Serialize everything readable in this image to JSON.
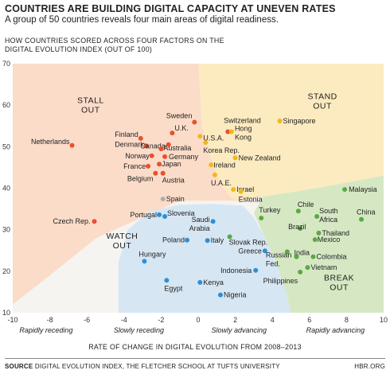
{
  "header": {
    "title": "COUNTRIES ARE BUILDING DIGITAL CAPACITY AT UNEVEN RATES",
    "subtitle": "A group of 50 countries reveals four main areas of digital readiness.",
    "caption_line1": "HOW COUNTRIES SCORED ACROSS FOUR FACTORS ON THE",
    "caption_line2": "DIGITAL EVOLUTION INDEX (OUT OF 100)"
  },
  "footer": {
    "source_label": "SOURCE",
    "source_text": "DIGITAL EVOLUTION INDEX, THE FLETCHER SCHOOL AT TUFTS UNIVERSITY",
    "credit": "HBR.ORG"
  },
  "colors": {
    "stall_out": "#e8502e",
    "stand_out": "#f2b818",
    "break_out": "#5aa942",
    "watch_out": "#2e8fd6",
    "neutral": "#b0aca8"
  },
  "chart_data": {
    "type": "scatter",
    "xlabel": "RATE OF CHANGE IN DIGITAL EVOLUTION FROM 2008–2013",
    "ylabel": "",
    "xlim": [
      -10,
      10
    ],
    "ylim": [
      10,
      70
    ],
    "x_ticks": [
      "-10",
      "-8",
      "-6",
      "-4",
      "-2",
      "0",
      "2",
      "4",
      "6",
      "8",
      "10"
    ],
    "y_ticks": [
      "10",
      "20",
      "30",
      "40",
      "50",
      "60",
      "70"
    ],
    "grid": false,
    "regions": [
      {
        "name": "STALL",
        "name2": "OUT",
        "color": "#e8502e"
      },
      {
        "name": "STAND",
        "name2": "OUT",
        "color": "#f2b818"
      },
      {
        "name": "WATCH",
        "name2": "OUT",
        "color": "#2e8fd6"
      },
      {
        "name": "BREAK",
        "name2": "OUT",
        "color": "#5aa942"
      }
    ],
    "speed_labels": [
      "Rapidly receding",
      "Slowly receding",
      "Slowly advancing",
      "Rapidly advancing"
    ],
    "points": [
      {
        "name": "Netherlands",
        "x": -6.8,
        "y": 50.3,
        "group": "stall_out"
      },
      {
        "name": "Finland",
        "x": -3.1,
        "y": 52.0,
        "group": "stall_out"
      },
      {
        "name": "Denmark",
        "x": -2.8,
        "y": 50.2,
        "group": "stall_out"
      },
      {
        "name": "Norway",
        "x": -2.5,
        "y": 47.8,
        "group": "stall_out"
      },
      {
        "name": "France",
        "x": -2.7,
        "y": 45.3,
        "group": "stall_out"
      },
      {
        "name": "Belgium",
        "x": -2.3,
        "y": 43.6,
        "group": "stall_out"
      },
      {
        "name": "Czech Rep.",
        "x": -5.6,
        "y": 32.0,
        "group": "stall_out"
      },
      {
        "name": "Sweden",
        "x": -0.2,
        "y": 55.9,
        "group": "stall_out"
      },
      {
        "name": "U.K.",
        "x": -1.4,
        "y": 53.3,
        "group": "stall_out"
      },
      {
        "name": "Canada",
        "x": -1.6,
        "y": 50.5,
        "group": "stall_out"
      },
      {
        "name": "Australia",
        "x": -2.0,
        "y": 49.5,
        "group": "stall_out"
      },
      {
        "name": "Germany",
        "x": -1.8,
        "y": 47.6,
        "group": "stall_out"
      },
      {
        "name": "Japan",
        "x": -2.1,
        "y": 45.8,
        "group": "stall_out"
      },
      {
        "name": "Austria",
        "x": -1.9,
        "y": 43.6,
        "group": "stall_out"
      },
      {
        "name": "Switzerland",
        "x": 1.6,
        "y": 53.6,
        "group": "stall_out"
      },
      {
        "name": "U.S.A.",
        "x": 0.1,
        "y": 52.5,
        "group": "stand_out"
      },
      {
        "name": "Hong Kong",
        "x": 1.8,
        "y": 53.6,
        "group": "stand_out"
      },
      {
        "name": "Korea Rep.",
        "x": 0.4,
        "y": 51.0,
        "group": "stand_out"
      },
      {
        "name": "Singapore",
        "x": 4.4,
        "y": 56.2,
        "group": "stand_out"
      },
      {
        "name": "New Zealand",
        "x": 2.0,
        "y": 47.3,
        "group": "stand_out"
      },
      {
        "name": "Ireland",
        "x": 0.7,
        "y": 45.6,
        "group": "stand_out"
      },
      {
        "name": "U.A.E.",
        "x": 0.9,
        "y": 43.2,
        "group": "stand_out"
      },
      {
        "name": "Israel",
        "x": 1.9,
        "y": 39.7,
        "group": "stand_out"
      },
      {
        "name": "Estonia",
        "x": 2.3,
        "y": 39.2,
        "group": "stand_out"
      },
      {
        "name": "Spain",
        "x": -1.9,
        "y": 37.4,
        "group": "neutral"
      },
      {
        "name": "Malaysia",
        "x": 7.9,
        "y": 39.7,
        "group": "break_out"
      },
      {
        "name": "Chile",
        "x": 5.4,
        "y": 34.5,
        "group": "break_out"
      },
      {
        "name": "South Africa",
        "x": 6.4,
        "y": 33.2,
        "group": "break_out"
      },
      {
        "name": "China",
        "x": 8.8,
        "y": 32.5,
        "group": "break_out"
      },
      {
        "name": "Brazil",
        "x": 5.5,
        "y": 30.3,
        "group": "break_out"
      },
      {
        "name": "Thailand",
        "x": 6.5,
        "y": 29.2,
        "group": "break_out"
      },
      {
        "name": "Mexico",
        "x": 6.3,
        "y": 27.6,
        "group": "break_out"
      },
      {
        "name": "India",
        "x": 5.3,
        "y": 23.5,
        "group": "break_out"
      },
      {
        "name": "Colombia",
        "x": 6.2,
        "y": 23.5,
        "group": "break_out"
      },
      {
        "name": "Vietnam",
        "x": 5.9,
        "y": 20.9,
        "group": "break_out"
      },
      {
        "name": "Philippines",
        "x": 5.5,
        "y": 19.8,
        "group": "break_out"
      },
      {
        "name": "Turkey",
        "x": 3.4,
        "y": 32.8,
        "group": "break_out"
      },
      {
        "name": "Russian Fed.",
        "x": 4.8,
        "y": 24.7,
        "group": "break_out"
      },
      {
        "name": "Slovak Rep.",
        "x": 1.7,
        "y": 28.3,
        "group": "break_out"
      },
      {
        "name": "Portugal",
        "x": -2.1,
        "y": 33.6,
        "group": "watch_out"
      },
      {
        "name": "Slovenia",
        "x": -1.8,
        "y": 33.2,
        "group": "watch_out"
      },
      {
        "name": "Saudi Arabia",
        "x": 0.8,
        "y": 32.0,
        "group": "watch_out"
      },
      {
        "name": "Poland",
        "x": -0.6,
        "y": 27.5,
        "group": "watch_out"
      },
      {
        "name": "Italy",
        "x": 0.5,
        "y": 27.4,
        "group": "watch_out"
      },
      {
        "name": "Greece",
        "x": 3.6,
        "y": 24.9,
        "group": "watch_out"
      },
      {
        "name": "Hungary",
        "x": -2.9,
        "y": 22.4,
        "group": "watch_out"
      },
      {
        "name": "Indonesia",
        "x": 3.1,
        "y": 20.2,
        "group": "watch_out"
      },
      {
        "name": "Egypt",
        "x": -1.7,
        "y": 17.8,
        "group": "watch_out"
      },
      {
        "name": "Kenya",
        "x": 0.1,
        "y": 17.3,
        "group": "watch_out"
      },
      {
        "name": "Nigeria",
        "x": 1.2,
        "y": 14.3,
        "group": "watch_out"
      }
    ]
  }
}
